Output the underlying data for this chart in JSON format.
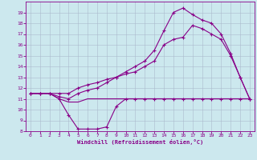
{
  "background_color": "#cce8ee",
  "grid_color": "#aabbcc",
  "line_color": "#880088",
  "xlabel": "Windchill (Refroidissement éolien,°C)",
  "xlim": [
    -0.5,
    23.5
  ],
  "ylim": [
    8,
    20
  ],
  "yticks": [
    8,
    9,
    10,
    11,
    12,
    13,
    14,
    15,
    16,
    17,
    18,
    19
  ],
  "xticks": [
    0,
    1,
    2,
    3,
    4,
    5,
    6,
    7,
    8,
    9,
    10,
    11,
    12,
    13,
    14,
    15,
    16,
    17,
    18,
    19,
    20,
    21,
    22,
    23
  ],
  "curve_low_x": [
    0,
    1,
    2,
    3,
    4,
    5,
    6,
    7,
    8,
    9,
    10,
    11,
    12,
    13,
    14,
    15,
    16,
    17,
    18,
    19,
    20,
    21,
    22,
    23
  ],
  "curve_low_y": [
    11.5,
    11.5,
    11.5,
    11.0,
    9.5,
    8.2,
    8.2,
    8.2,
    8.4,
    10.3,
    11.0,
    11.0,
    11.0,
    11.0,
    11.0,
    11.0,
    11.0,
    11.0,
    11.0,
    11.0,
    11.0,
    11.0,
    11.0,
    11.0
  ],
  "curve_flat_x": [
    0,
    1,
    2,
    3,
    4,
    5,
    6,
    7,
    8,
    9,
    10,
    11,
    12,
    13,
    14,
    15,
    16,
    17,
    18,
    19,
    20,
    21,
    22,
    23
  ],
  "curve_flat_y": [
    11.5,
    11.5,
    11.5,
    11.0,
    10.7,
    10.7,
    11.0,
    11.0,
    11.0,
    11.0,
    11.0,
    11.0,
    11.0,
    11.0,
    11.0,
    11.0,
    11.0,
    11.0,
    11.0,
    11.0,
    11.0,
    11.0,
    11.0,
    11.0
  ],
  "curve_mid_x": [
    0,
    1,
    2,
    3,
    4,
    5,
    6,
    7,
    8,
    9,
    10,
    11,
    12,
    13,
    14,
    15,
    16,
    17,
    18,
    19,
    20,
    21,
    22,
    23
  ],
  "curve_mid_y": [
    11.5,
    11.5,
    11.5,
    11.5,
    11.5,
    12.0,
    12.3,
    12.5,
    12.8,
    13.0,
    13.3,
    13.5,
    14.0,
    14.5,
    16.0,
    16.5,
    16.7,
    17.8,
    17.5,
    17.0,
    16.5,
    15.0,
    13.0,
    11.0
  ],
  "curve_high_x": [
    0,
    1,
    2,
    3,
    4,
    5,
    6,
    7,
    8,
    9,
    10,
    11,
    12,
    13,
    14,
    15,
    16,
    17,
    18,
    19,
    20,
    21,
    22,
    23
  ],
  "curve_high_y": [
    11.5,
    11.5,
    11.5,
    11.2,
    11.0,
    11.5,
    11.8,
    12.0,
    12.5,
    13.0,
    13.5,
    14.0,
    14.5,
    15.5,
    17.3,
    19.0,
    19.4,
    18.8,
    18.3,
    18.0,
    17.0,
    15.2,
    13.0,
    11.0
  ]
}
